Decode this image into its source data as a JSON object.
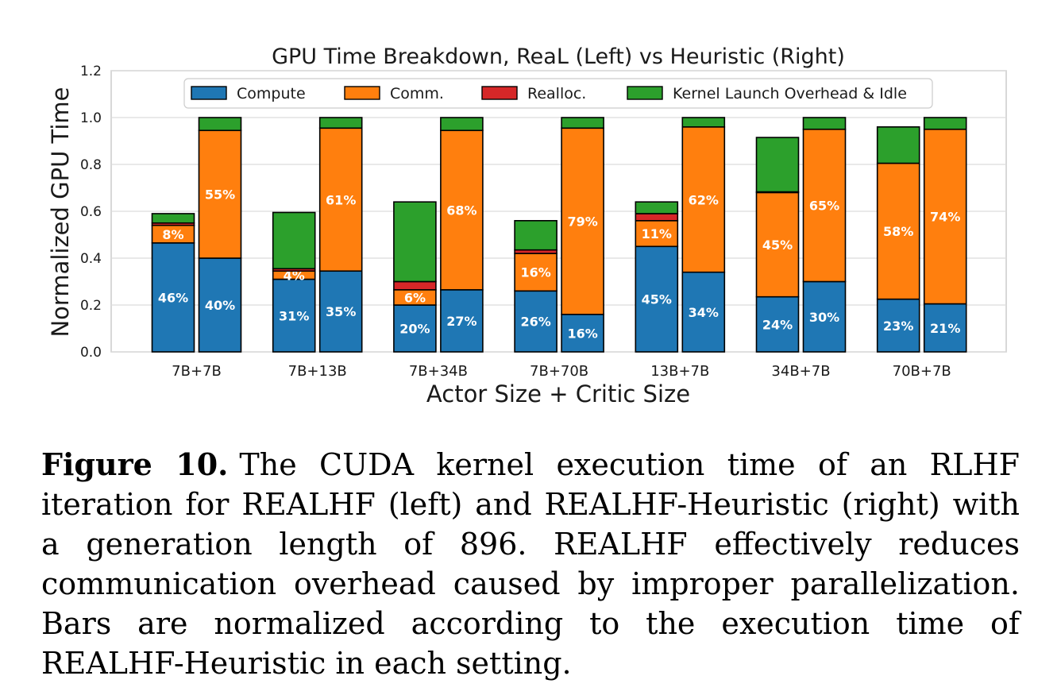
{
  "chart_data": {
    "type": "bar",
    "stacked": true,
    "title": "GPU Time Breakdown, ReaL (Left) vs Heuristic (Right)",
    "xlabel": "Actor Size + Critic Size",
    "ylabel": "Normalized GPU Time",
    "ylim": [
      0,
      1.2
    ],
    "yticks": [
      "0.0",
      "0.2",
      "0.4",
      "0.6",
      "0.8",
      "1.0",
      "1.2"
    ],
    "grid": true,
    "legend_position": "top",
    "categories": [
      "7B+7B",
      "7B+13B",
      "7B+34B",
      "7B+70B",
      "13B+7B",
      "34B+7B",
      "70B+7B"
    ],
    "series": [
      {
        "name": "Compute",
        "color": "#1f77b4"
      },
      {
        "name": "Comm.",
        "color": "#ff7f0e"
      },
      {
        "name": "Realloc.",
        "color": "#d62728"
      },
      {
        "name": "Kernel Launch Overhead & Idle",
        "color": "#2ca02c"
      }
    ],
    "bars": [
      {
        "category": "7B+7B",
        "side": "left",
        "values": [
          0.465,
          0.075,
          0.01,
          0.04
        ],
        "labels": [
          "46%",
          "8%",
          "",
          ""
        ]
      },
      {
        "category": "7B+7B",
        "side": "right",
        "values": [
          0.4,
          0.545,
          0.0,
          0.055
        ],
        "labels": [
          "40%",
          "55%",
          "",
          ""
        ]
      },
      {
        "category": "7B+13B",
        "side": "left",
        "values": [
          0.31,
          0.035,
          0.01,
          0.24
        ],
        "labels": [
          "31%",
          "4%",
          "",
          ""
        ]
      },
      {
        "category": "7B+13B",
        "side": "right",
        "values": [
          0.345,
          0.61,
          0.0,
          0.045
        ],
        "labels": [
          "35%",
          "61%",
          "",
          ""
        ]
      },
      {
        "category": "7B+34B",
        "side": "left",
        "values": [
          0.2,
          0.065,
          0.035,
          0.34
        ],
        "labels": [
          "20%",
          "6%",
          "",
          ""
        ]
      },
      {
        "category": "7B+34B",
        "side": "right",
        "values": [
          0.265,
          0.68,
          0.0,
          0.055
        ],
        "labels": [
          "27%",
          "68%",
          "",
          ""
        ]
      },
      {
        "category": "7B+70B",
        "side": "left",
        "values": [
          0.26,
          0.16,
          0.015,
          0.125
        ],
        "labels": [
          "26%",
          "16%",
          "",
          ""
        ]
      },
      {
        "category": "7B+70B",
        "side": "right",
        "values": [
          0.16,
          0.795,
          0.0,
          0.045
        ],
        "labels": [
          "16%",
          "79%",
          "",
          ""
        ]
      },
      {
        "category": "13B+7B",
        "side": "left",
        "values": [
          0.45,
          0.11,
          0.03,
          0.05
        ],
        "labels": [
          "45%",
          "11%",
          "",
          ""
        ]
      },
      {
        "category": "13B+7B",
        "side": "right",
        "values": [
          0.34,
          0.62,
          0.0,
          0.04
        ],
        "labels": [
          "34%",
          "62%",
          "",
          ""
        ]
      },
      {
        "category": "34B+7B",
        "side": "left",
        "values": [
          0.235,
          0.445,
          0.003,
          0.232
        ],
        "labels": [
          "24%",
          "45%",
          "",
          ""
        ]
      },
      {
        "category": "34B+7B",
        "side": "right",
        "values": [
          0.3,
          0.65,
          0.0,
          0.05
        ],
        "labels": [
          "30%",
          "65%",
          "",
          ""
        ]
      },
      {
        "category": "70B+7B",
        "side": "left",
        "values": [
          0.225,
          0.58,
          0.0,
          0.155
        ],
        "labels": [
          "23%",
          "58%",
          "",
          ""
        ]
      },
      {
        "category": "70B+7B",
        "side": "right",
        "values": [
          0.205,
          0.745,
          0.0,
          0.05
        ],
        "labels": [
          "21%",
          "74%",
          "",
          ""
        ]
      }
    ]
  },
  "caption": {
    "label": "Figure 10.",
    "text": "The CUDA kernel execution time of an RLHF iteration for REALHF (left) and REALHF-Heuristic (right) with a generation length of 896. REALHF effectively reduces communication overhead caused by improper parallelization. Bars are normalized according to the execution time of REALHF-Heuristic in each setting."
  }
}
